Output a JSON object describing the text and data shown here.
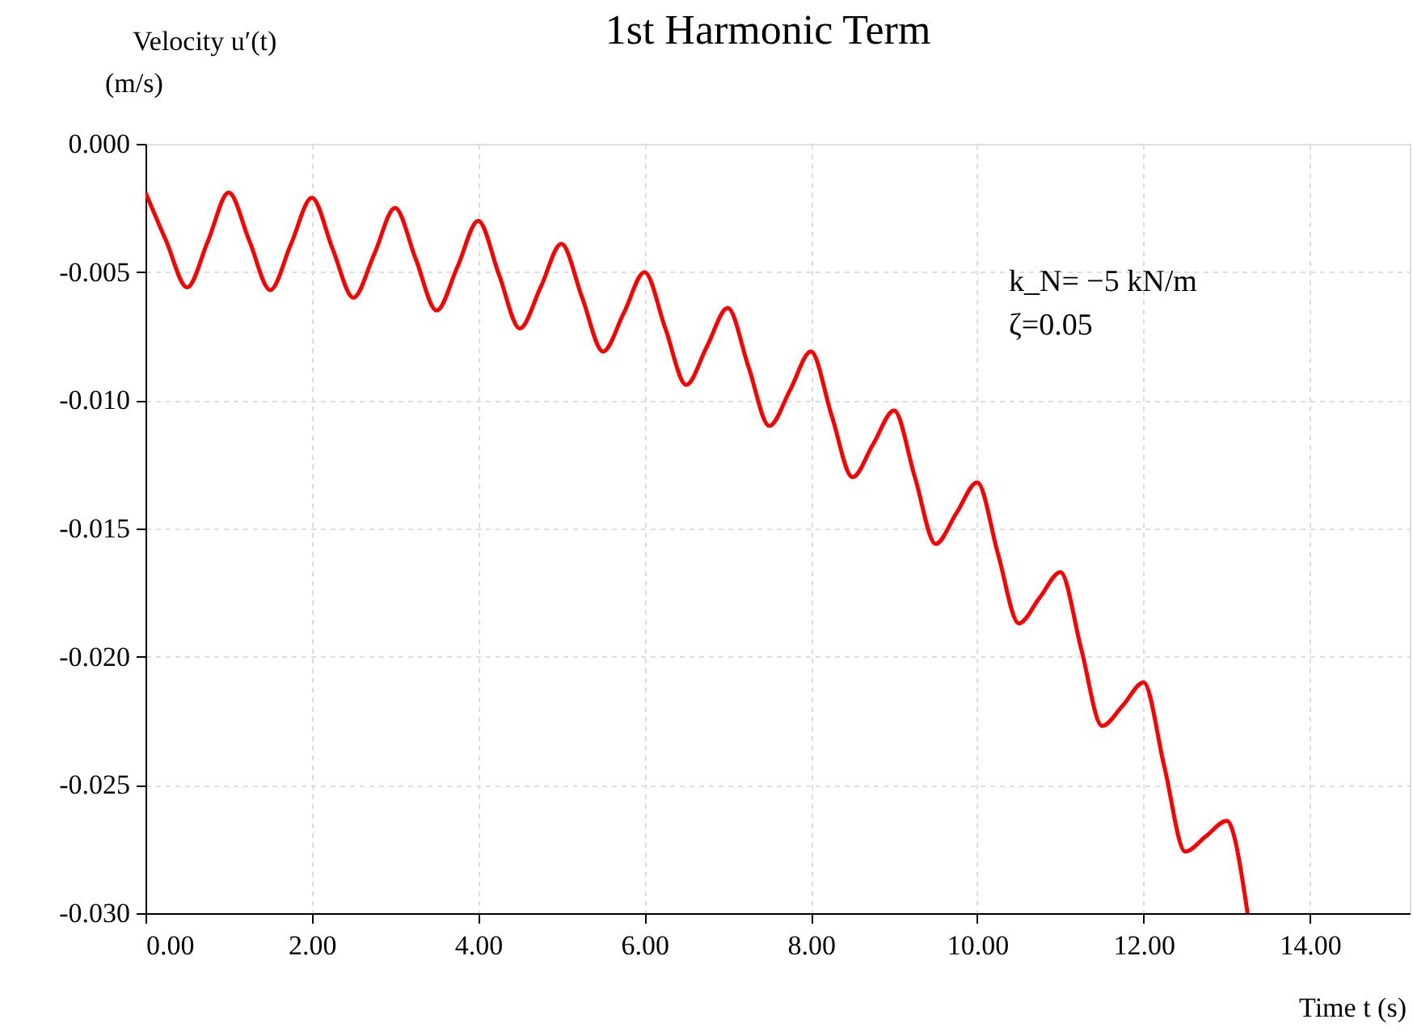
{
  "chart_data": {
    "type": "line",
    "title": "1st Harmonic Term",
    "xlabel": "Time t (s)",
    "ylabel": "Velocity u′(t)\n(m/s)",
    "annotations": [
      "k_N= −5  kN/m",
      "ζ=0.05"
    ],
    "x": [
      0,
      0.25,
      0.5,
      0.75,
      1.0,
      1.25,
      1.5,
      1.75,
      2.0,
      2.25,
      2.5,
      2.75,
      3.0,
      3.25,
      3.5,
      3.75,
      4.0,
      4.25,
      4.5,
      4.75,
      5.0,
      5.25,
      5.5,
      5.75,
      6.0,
      6.25,
      6.5,
      6.75,
      7.0,
      7.25,
      7.5,
      7.75,
      8.0,
      8.25,
      8.5,
      8.75,
      9.0,
      9.25,
      9.5,
      9.75,
      10.0,
      10.25,
      10.5,
      10.75,
      11.0,
      11.25,
      11.5,
      11.75,
      12.0,
      12.25,
      12.5,
      12.75,
      13.0,
      13.25
    ],
    "series": [
      {
        "color": "#ff0000",
        "values": [
          -0.0019,
          -0.0038,
          -0.0056,
          -0.0038,
          -0.0019,
          -0.0038,
          -0.0057,
          -0.0039,
          -0.0021,
          -0.0041,
          -0.006,
          -0.0043,
          -0.0025,
          -0.0045,
          -0.0065,
          -0.0048,
          -0.003,
          -0.0051,
          -0.0072,
          -0.0056,
          -0.0039,
          -0.006,
          -0.0081,
          -0.0066,
          -0.005,
          -0.0072,
          -0.0094,
          -0.0079,
          -0.0064,
          -0.0087,
          -0.011,
          -0.0096,
          -0.0081,
          -0.0106,
          -0.013,
          -0.0117,
          -0.0104,
          -0.013,
          -0.0156,
          -0.0144,
          -0.0132,
          -0.016,
          -0.0187,
          -0.0177,
          -0.0167,
          -0.0197,
          -0.0227,
          -0.0219,
          -0.021,
          -0.0243,
          -0.0276,
          -0.027,
          -0.0264,
          -0.03
        ]
      }
    ],
    "xlim": [
      0,
      15.2
    ],
    "ylim": [
      -0.03,
      0
    ],
    "xticks": [
      {
        "value": 0,
        "label": "0.00"
      },
      {
        "value": 2,
        "label": "2.00"
      },
      {
        "value": 4,
        "label": "4.00"
      },
      {
        "value": 6,
        "label": "6.00"
      },
      {
        "value": 8,
        "label": "8.00"
      },
      {
        "value": 10,
        "label": "10.00"
      },
      {
        "value": 12,
        "label": "12.00"
      },
      {
        "value": 14,
        "label": "14.00"
      }
    ],
    "yticks": [
      {
        "value": 0,
        "label": "0.000"
      },
      {
        "value": -0.005,
        "label": "-0.005"
      },
      {
        "value": -0.01,
        "label": "-0.010"
      },
      {
        "value": -0.015,
        "label": "-0.015"
      },
      {
        "value": -0.02,
        "label": "-0.020"
      },
      {
        "value": -0.025,
        "label": "-0.025"
      },
      {
        "value": -0.03,
        "label": "-0.030"
      }
    ],
    "grid": true,
    "marker": "none",
    "line_style": "solid"
  }
}
